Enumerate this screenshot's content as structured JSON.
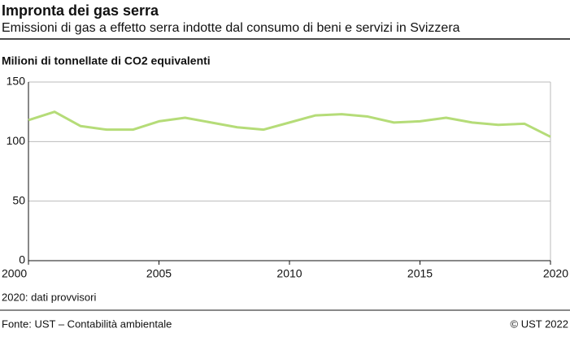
{
  "chart_data": {
    "type": "line",
    "title": "Impronta dei gas serra",
    "subtitle": "Emissioni di gas a effetto serra indotte dal consumo di beni e servizi in Svizzera",
    "y_axis_label": "Milioni di tonnellate di CO2 equivalenti",
    "note": "2020: dati provvisori",
    "source": "Fonte: UST – Contabilità ambientale",
    "copyright": "© UST 2022",
    "x": [
      2000,
      2001,
      2002,
      2003,
      2004,
      2005,
      2006,
      2007,
      2008,
      2009,
      2010,
      2011,
      2012,
      2013,
      2014,
      2015,
      2016,
      2017,
      2018,
      2019,
      2020
    ],
    "values": [
      118,
      125,
      113,
      110,
      110,
      117,
      120,
      116,
      112,
      110,
      116,
      122,
      123,
      121,
      116,
      117,
      120,
      116,
      114,
      115,
      104
    ],
    "color": "#b5dc78",
    "xlim": [
      2000,
      2020
    ],
    "xticks": [
      2000,
      2005,
      2010,
      2015,
      2020
    ],
    "ylim": [
      0,
      150
    ],
    "yticks": [
      0,
      50,
      100,
      150
    ],
    "grid": true
  }
}
